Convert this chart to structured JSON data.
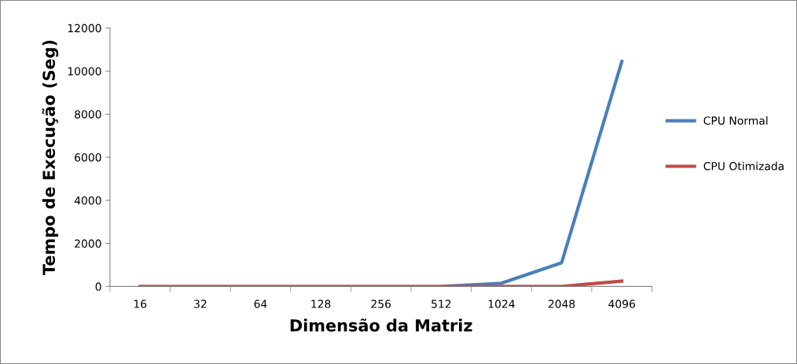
{
  "chart_data": {
    "type": "line",
    "xlabel": "Dimensão da Matriz",
    "ylabel": "Tempo de Execução (Seg)",
    "categories": [
      "16",
      "32",
      "64",
      "128",
      "256",
      "512",
      "1024",
      "2048",
      "4096"
    ],
    "series": [
      {
        "name": "CPU Normal",
        "color": "#4a7ebb",
        "values": [
          null,
          null,
          null,
          null,
          null,
          0,
          150,
          1100,
          10450
        ]
      },
      {
        "name": "CPU Otimizada",
        "color": "#be4b48",
        "values": [
          0,
          0,
          0,
          0,
          0,
          0,
          0,
          0,
          250
        ]
      }
    ],
    "ylim": [
      0,
      12000
    ],
    "yticks": [
      0,
      2000,
      4000,
      6000,
      8000,
      10000,
      12000
    ],
    "grid": false,
    "legend": "right",
    "marker": "none",
    "line_style": "solid"
  }
}
